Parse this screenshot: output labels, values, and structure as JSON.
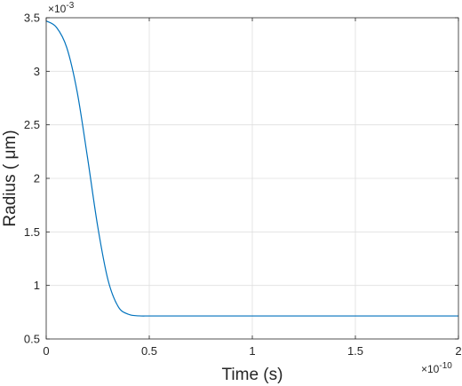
{
  "chart_data": {
    "type": "line",
    "title": "",
    "xlabel": "Time (s)",
    "ylabel": "Radius ( μm)",
    "x_multiplier": {
      "base": "×10",
      "exponent": "-10"
    },
    "y_multiplier": {
      "base": "×10",
      "exponent": "-3"
    },
    "xlim": [
      0,
      2e-10
    ],
    "ylim": [
      0.0005,
      0.0035
    ],
    "xticks": [
      0,
      5e-11,
      1e-10,
      1.5e-10,
      2e-10
    ],
    "xtick_labels": [
      "0",
      "0.5",
      "1",
      "1.5",
      "2"
    ],
    "yticks": [
      0.0005,
      0.001,
      0.0015,
      0.002,
      0.0025,
      0.003,
      0.0035
    ],
    "ytick_labels": [
      "0.5",
      "1",
      "1.5",
      "2",
      "2.5",
      "3",
      "3.5"
    ],
    "grid": true,
    "legend": "none",
    "line_color": "#0072bd",
    "series": [
      {
        "x": [
          0,
          5e-12,
          1e-11,
          1.5e-11,
          2e-11,
          2.5e-11,
          3e-11,
          3.5e-11,
          4e-11,
          4.5e-11,
          5e-11,
          6e-11,
          8e-11,
          1e-10,
          1.5e-10,
          2e-10
        ],
        "values": [
          0.00347,
          0.00341,
          0.00322,
          0.00281,
          0.0022,
          0.00155,
          0.00105,
          0.0008,
          0.00073,
          0.000716,
          0.000715,
          0.000715,
          0.000715,
          0.000715,
          0.000715,
          0.000715
        ]
      }
    ]
  }
}
